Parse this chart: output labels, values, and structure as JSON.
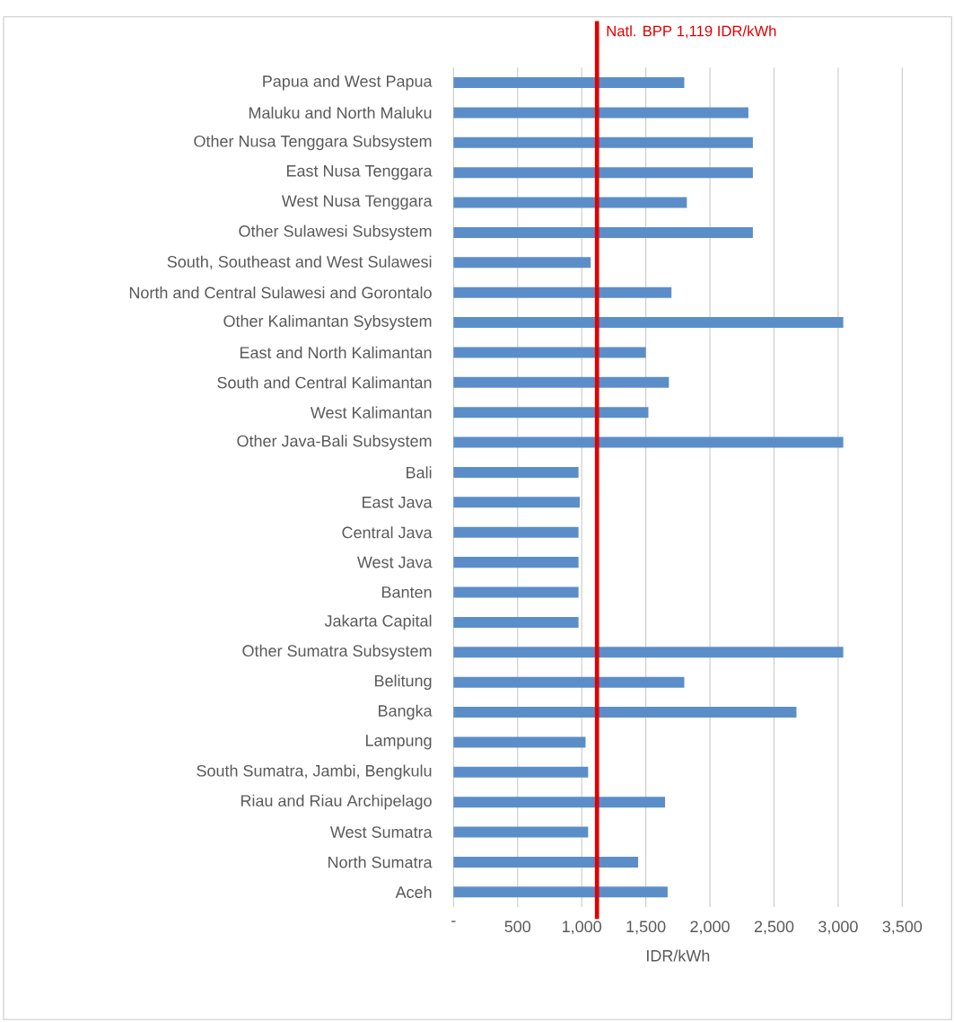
{
  "chart_data": {
    "type": "bar",
    "orientation": "horizontal",
    "xlabel": "IDR/kWh",
    "categories": [
      "Papua and West Papua",
      "Maluku and North Maluku",
      "Other Nusa Tenggara Subsystem",
      "East Nusa Tenggara",
      "West Nusa Tenggara",
      "Other Sulawesi Subsystem",
      "South, Southeast and West Sulawesi",
      "North and Central Sulawesi and Gorontalo",
      "Other Kalimantan Sybsystem",
      "East and North Kalimantan",
      "South and Central Kalimantan",
      "West Kalimantan",
      "Other Java-Bali Subsystem",
      "Bali",
      "East Java",
      "Central Java",
      "West Java",
      "Banten",
      "Jakarta Capital",
      "Other Sumatra Subsystem",
      "Belitung",
      "Bangka",
      "Lampung",
      "South Sumatra, Jambi, Bengkulu",
      "Riau and Riau Archipelago",
      "West Sumatra",
      "North Sumatra",
      "Aceh"
    ],
    "values": [
      1800,
      2300,
      2335,
      2335,
      1820,
      2335,
      1070,
      1700,
      3040,
      1500,
      1680,
      1520,
      3040,
      975,
      985,
      975,
      975,
      975,
      975,
      3040,
      1800,
      2675,
      1030,
      1050,
      1650,
      1050,
      1440,
      1670
    ],
    "color": "#5b8ec8",
    "xlim": [
      0,
      3500
    ],
    "xticks": [
      {
        "value": 0,
        "label": "-"
      },
      500,
      {
        "value": 1000,
        "label": "1,000"
      },
      {
        "value": 1500,
        "label": "1,500"
      },
      {
        "value": 2000,
        "label": "2,000"
      },
      {
        "value": 2500,
        "label": "2,500"
      },
      {
        "value": 3000,
        "label": "3,000"
      },
      {
        "value": 3500,
        "label": "3,500"
      }
    ],
    "grid": "x",
    "ref_lines": [
      {
        "axis": "x",
        "value": 1119,
        "label": "Natl. BPP 1,119 IDR/kWh",
        "color": "#e00000"
      }
    ]
  }
}
